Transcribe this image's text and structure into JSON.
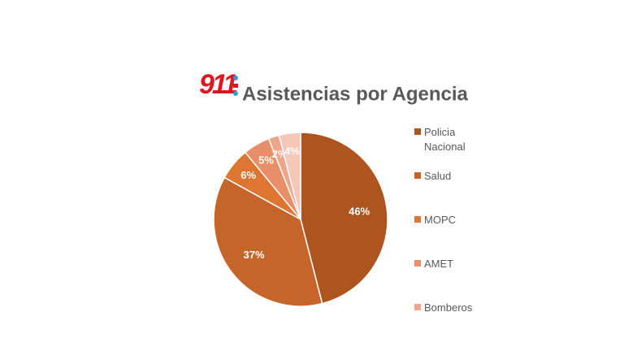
{
  "logo": "911",
  "chart_data": {
    "type": "pie",
    "title": "Asistencias por Agencia",
    "categories": [
      "Policia Nacional",
      "Salud",
      "MOPC",
      "AMET",
      "Bomberos",
      null
    ],
    "values": [
      46,
      37,
      6,
      5,
      2,
      4
    ],
    "value_labels": [
      "46%",
      "37%",
      "6%",
      "5%",
      "2%",
      "4%"
    ],
    "colors": [
      "#ad541f",
      "#c5652a",
      "#dd7632",
      "#e88f6a",
      "#eea68b",
      "#f5c7b9"
    ],
    "legend": "right"
  }
}
